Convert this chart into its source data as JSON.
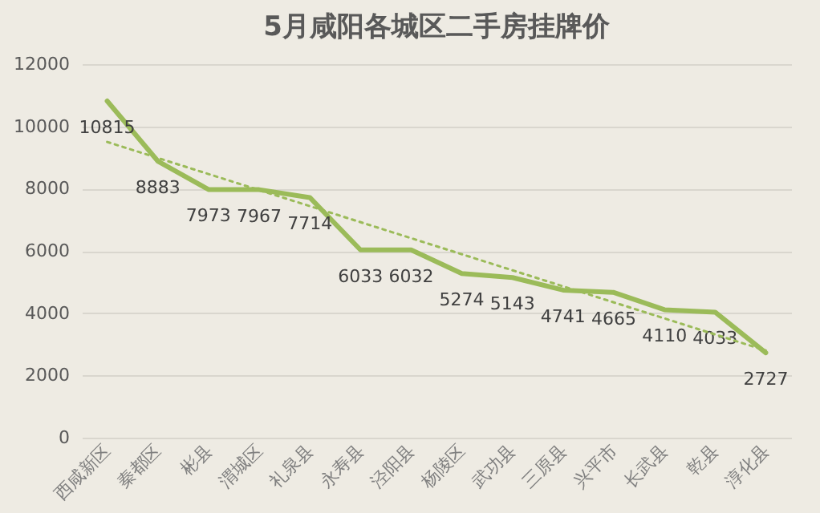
{
  "chart_data": {
    "type": "line",
    "title": "5月咸阳各城区二手房挂牌价",
    "categories": [
      "西咸新区",
      "秦都区",
      "彬县",
      "渭城区",
      "礼泉县",
      "永寿县",
      "泾阳县",
      "杨陵区",
      "武功县",
      "三原县",
      "兴平市",
      "长武县",
      "乾县",
      "淳化县"
    ],
    "series": [
      {
        "color": "#9bbb59",
        "line_style": "solid",
        "values": [
          10815,
          8883,
          7973,
          7967,
          7714,
          6033,
          6032,
          5274,
          5143,
          4741,
          4665,
          4110,
          4033,
          2727
        ],
        "value_labels": [
          "10815",
          "8883",
          "7973",
          "7967",
          "7714",
          "6033",
          "6032",
          "5274",
          "5143",
          "4741",
          "4665",
          "4110",
          "4033",
          "2727"
        ]
      },
      {
        "type": "line",
        "color": "#9bbb59",
        "line_style": "dotted",
        "x": [
          "西咸新区",
          "淳化县"
        ],
        "values": [
          9500,
          2800
        ]
      }
    ],
    "ylim": [
      0,
      12000
    ],
    "yticks": [
      0,
      2000,
      4000,
      6000,
      8000,
      10000,
      12000
    ],
    "grid": "y"
  }
}
